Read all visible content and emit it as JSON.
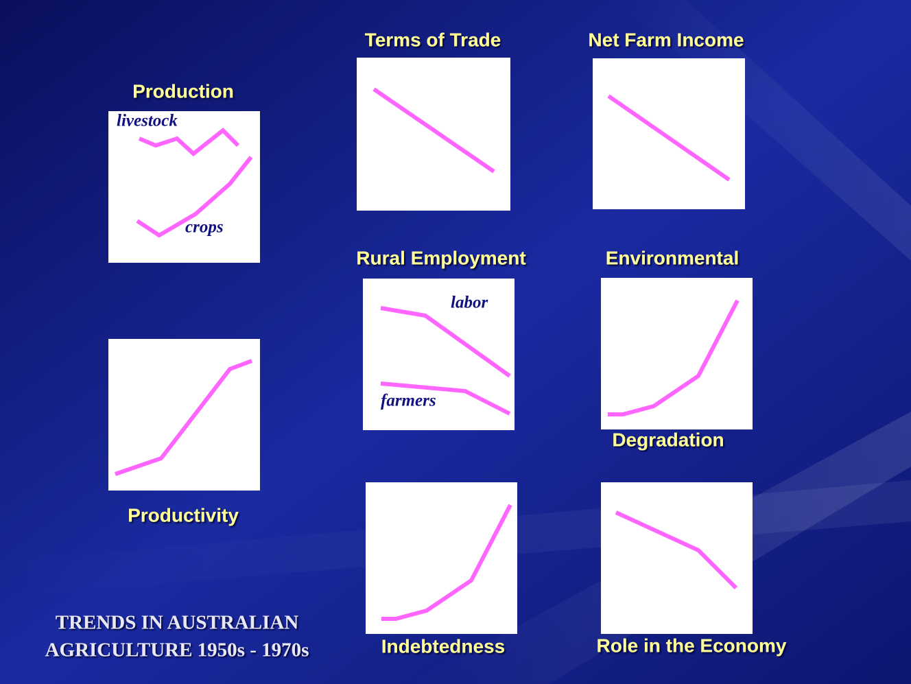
{
  "title": "TRENDS  IN AUSTRALIAN AGRICULTURE  1950s - 1970s",
  "title_lines": [
    "TRENDS  IN AUSTRALIAN",
    "AGRICULTURE  1950s - 1970s"
  ],
  "panels": [
    {
      "title": "Production",
      "labels": [
        "livestock",
        "crops"
      ]
    },
    {
      "title": "Productivity"
    },
    {
      "title": "Terms of Trade"
    },
    {
      "title": "Net Farm Income"
    },
    {
      "title": "Rural Employment",
      "labels": [
        "labor",
        "farmers"
      ]
    },
    {
      "title_lines": [
        "Environmental",
        "Degradation"
      ]
    },
    {
      "title": "Indebtedness"
    },
    {
      "title": "Role in the Economy"
    }
  ]
}
